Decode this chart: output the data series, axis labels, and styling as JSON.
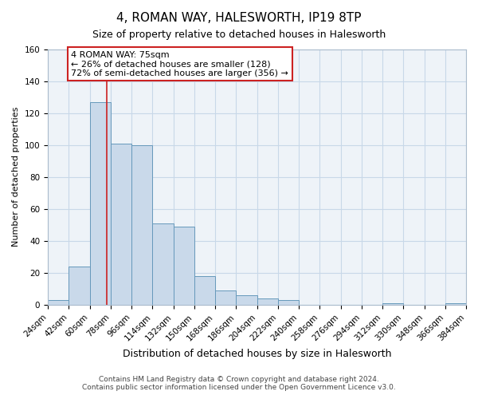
{
  "title": "4, ROMAN WAY, HALESWORTH, IP19 8TP",
  "subtitle": "Size of property relative to detached houses in Halesworth",
  "xlabel": "Distribution of detached houses by size in Halesworth",
  "ylabel": "Number of detached properties",
  "bin_edges": [
    24,
    42,
    60,
    78,
    96,
    114,
    132,
    150,
    168,
    186,
    204,
    222,
    240,
    258,
    276,
    294,
    312,
    330,
    348,
    366,
    384
  ],
  "bar_heights": [
    3,
    24,
    127,
    101,
    100,
    51,
    49,
    18,
    9,
    6,
    4,
    3,
    0,
    0,
    0,
    0,
    1,
    0,
    0,
    1
  ],
  "bar_color": "#c9d9ea",
  "bar_edge_color": "#6699bb",
  "reference_line_x": 75,
  "annotation_line1": "4 ROMAN WAY: 75sqm",
  "annotation_line2": "← 26% of detached houses are smaller (128)",
  "annotation_line3": "72% of semi-detached houses are larger (356) →",
  "annotation_box_facecolor": "white",
  "annotation_box_edgecolor": "#cc2222",
  "red_line_color": "#cc2222",
  "ylim": [
    0,
    160
  ],
  "yticks": [
    0,
    20,
    40,
    60,
    80,
    100,
    120,
    140,
    160
  ],
  "tick_labels": [
    "24sqm",
    "42sqm",
    "60sqm",
    "78sqm",
    "96sqm",
    "114sqm",
    "132sqm",
    "150sqm",
    "168sqm",
    "186sqm",
    "204sqm",
    "222sqm",
    "240sqm",
    "258sqm",
    "276sqm",
    "294sqm",
    "312sqm",
    "330sqm",
    "348sqm",
    "366sqm",
    "384sqm"
  ],
  "footer_line1": "Contains HM Land Registry data © Crown copyright and database right 2024.",
  "footer_line2": "Contains public sector information licensed under the Open Government Licence v3.0.",
  "grid_color": "#c8d8e8",
  "background_color": "#eef3f8",
  "title_fontsize": 11,
  "subtitle_fontsize": 9,
  "ylabel_fontsize": 8,
  "xlabel_fontsize": 9,
  "tick_fontsize": 7.5,
  "annotation_fontsize": 8,
  "footer_fontsize": 6.5
}
